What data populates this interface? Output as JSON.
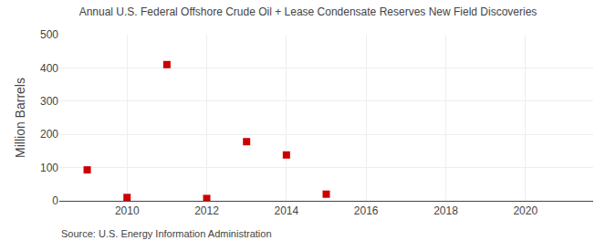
{
  "chart_data": {
    "type": "scatter",
    "title": "Annual U.S. Federal Offshore Crude Oil + Lease Condensate Reserves New Field Discoveries",
    "ylabel": "Million Barrels",
    "annotations": [
      "Source: U.S. Energy Information Administration"
    ],
    "x": [
      2009,
      2010,
      2011,
      2012,
      2013,
      2014,
      2015
    ],
    "values": [
      93,
      10,
      410,
      7,
      178,
      138,
      20
    ],
    "color": "#cc0000",
    "marker": "square",
    "xlim": [
      2008.3,
      2021.7
    ],
    "ylim": [
      0,
      500
    ],
    "xticks": [
      2010,
      2012,
      2014,
      2016,
      2018,
      2020
    ],
    "yticks": [
      0,
      100,
      200,
      300,
      400,
      500
    ],
    "grid": true
  }
}
